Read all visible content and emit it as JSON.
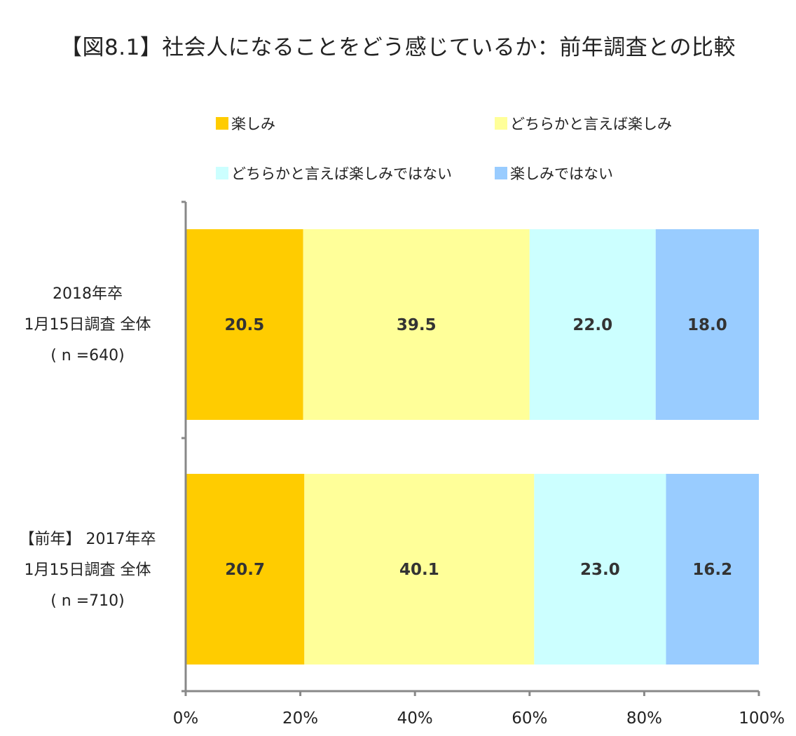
{
  "chart_data": {
    "type": "bar",
    "orientation": "horizontal",
    "stacked": true,
    "title": "【図8.1】社会人になることをどう感じているか：前年調査との比較",
    "categories": [
      [
        "2018年卒",
        "1月15日調査  全体",
        "( n =640)"
      ],
      [
        "【前年】 2017年卒",
        "1月15日調査  全体",
        "( n =710)"
      ]
    ],
    "series": [
      {
        "name": "楽しみ",
        "color": "#FFCC00",
        "values": [
          20.5,
          20.7
        ]
      },
      {
        "name": "どちらかと言えば楽しみ",
        "color": "#FFFF99",
        "values": [
          39.5,
          40.1
        ]
      },
      {
        "name": "どちらかと言えば楽しみではない",
        "color": "#CCFFFF",
        "values": [
          22.0,
          23.0
        ]
      },
      {
        "name": "楽しみではない",
        "color": "#99CCFF",
        "values": [
          18.0,
          16.2
        ]
      }
    ],
    "xlim": [
      0,
      100
    ],
    "xticks": [
      "0%",
      "20%",
      "40%",
      "60%",
      "80%",
      "100%"
    ],
    "legend": "top",
    "grid": false
  }
}
